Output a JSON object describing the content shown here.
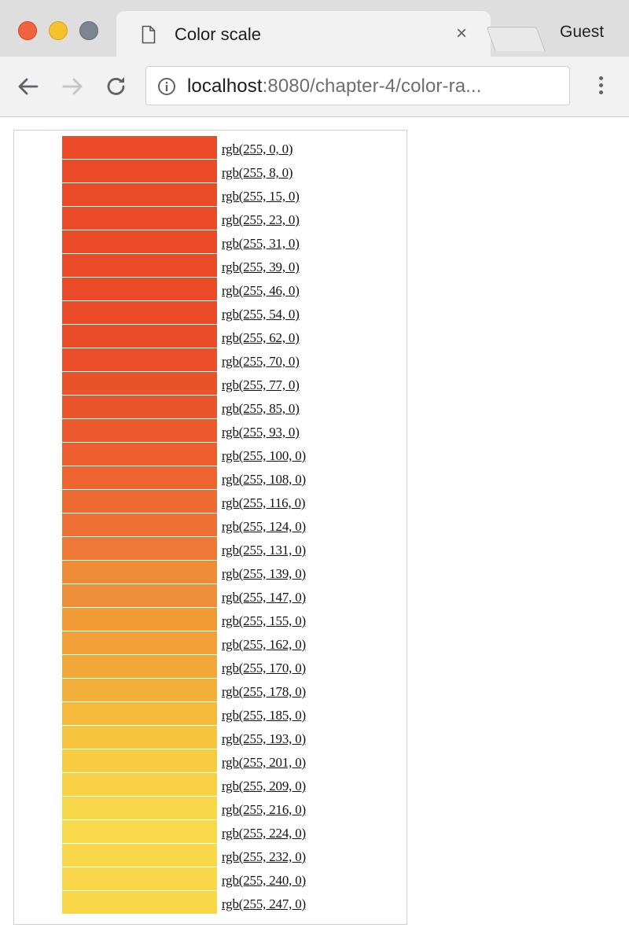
{
  "browser": {
    "tab_title": "Color scale",
    "tab_close_glyph": "×",
    "profile_label": "Guest",
    "url_host": "localhost",
    "url_rest": ":8080/chapter-4/color-ra...",
    "icons": {
      "traffic_lights": [
        "close-dot",
        "minimize-dot",
        "zoom-dot"
      ],
      "tab": "page-icon",
      "back": "back-arrow-icon",
      "forward": "forward-arrow-icon",
      "reload": "reload-icon",
      "site_info": "info-icon",
      "menu": "kebab-menu-icon"
    },
    "colors": {
      "close": "#f0643f",
      "minimize": "#f7c12e",
      "zoom": "#7b8591"
    }
  },
  "scale": {
    "swatch_colors": [
      "#ea4a27",
      "#ea4a27",
      "#ea4a27",
      "#ea4a27",
      "#ea4a27",
      "#ea4a27",
      "#ea4a27",
      "#ea4a27",
      "#ea4b28",
      "#eb4e29",
      "#ea522a",
      "#eb552b",
      "#eb5a2d",
      "#ec5e2e",
      "#ed6431",
      "#ed6a33",
      "#ee7035",
      "#ee7836",
      "#ef8c38",
      "#ef8e38",
      "#f09b36",
      "#f1a137",
      "#f2a838",
      "#f3b03a",
      "#f5b93c",
      "#f6c43f",
      "#f7cc43",
      "#f7d046",
      "#f8d84a",
      "#f9d849",
      "#f9d748",
      "#f9d748",
      "#f9d748",
      "#f9d748"
    ],
    "items": [
      "rgb(255, 0, 0)",
      "rgb(255, 8, 0)",
      "rgb(255, 15, 0)",
      "rgb(255, 23, 0)",
      "rgb(255, 31, 0)",
      "rgb(255, 39, 0)",
      "rgb(255, 46, 0)",
      "rgb(255, 54, 0)",
      "rgb(255, 62, 0)",
      "rgb(255, 70, 0)",
      "rgb(255, 77, 0)",
      "rgb(255, 85, 0)",
      "rgb(255, 93, 0)",
      "rgb(255, 100, 0)",
      "rgb(255, 108, 0)",
      "rgb(255, 116, 0)",
      "rgb(255, 124, 0)",
      "rgb(255, 131, 0)",
      "rgb(255, 139, 0)",
      "rgb(255, 147, 0)",
      "rgb(255, 155, 0)",
      "rgb(255, 162, 0)",
      "rgb(255, 170, 0)",
      "rgb(255, 178, 0)",
      "rgb(255, 185, 0)",
      "rgb(255, 193, 0)",
      "rgb(255, 201, 0)",
      "rgb(255, 209, 0)",
      "rgb(255, 216, 0)",
      "rgb(255, 224, 0)",
      "rgb(255, 232, 0)",
      "rgb(255, 240, 0)",
      "rgb(255, 247, 0)"
    ]
  }
}
